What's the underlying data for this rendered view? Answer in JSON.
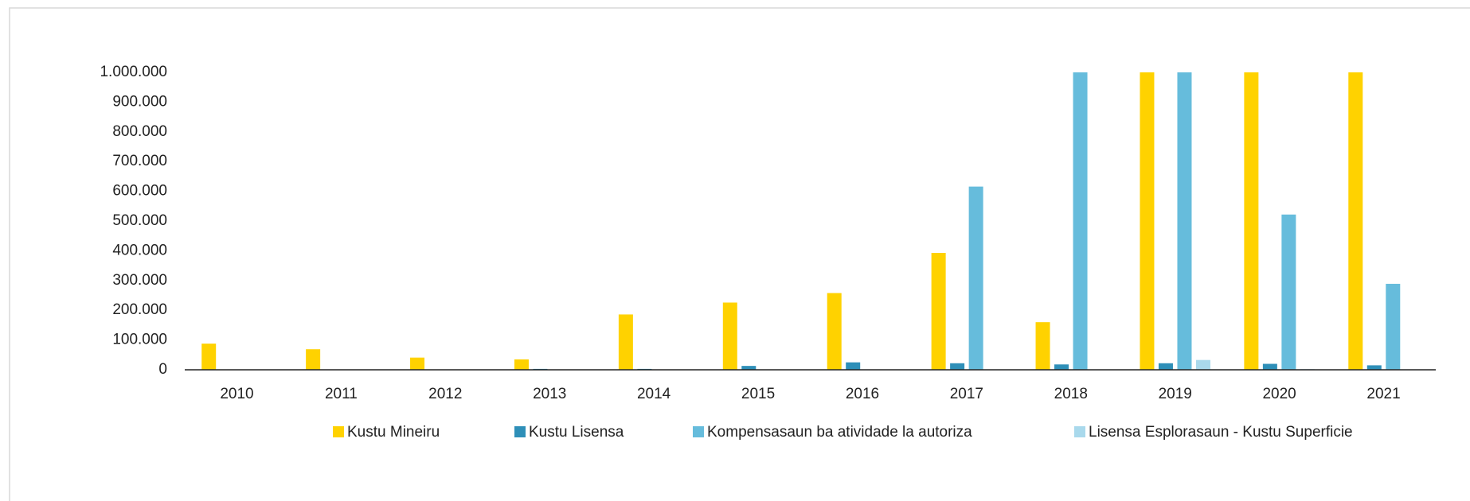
{
  "chart_data": {
    "type": "bar",
    "categories": [
      "2010",
      "2011",
      "2012",
      "2013",
      "2014",
      "2015",
      "2016",
      "2017",
      "2018",
      "2019",
      "2020",
      "2021"
    ],
    "series": [
      {
        "name": "Kustu Mineiru",
        "color": "#ffd200",
        "values": [
          88000,
          69000,
          41000,
          35000,
          186000,
          226000,
          258000,
          393000,
          160000,
          1000000,
          1000000,
          1000000
        ]
      },
      {
        "name": "Kustu Lisensa",
        "color": "#2e8fb8",
        "values": [
          0,
          0,
          0,
          3000,
          3000,
          13000,
          25000,
          22000,
          18000,
          22000,
          20000,
          15000
        ]
      },
      {
        "name": "Kompensasaun ba atividade la autoriza",
        "color": "#66bcdc",
        "values": [
          0,
          0,
          0,
          0,
          0,
          0,
          0,
          616000,
          1000000,
          1000000,
          522000,
          289000
        ]
      },
      {
        "name": "Lisensa Esplorasaun - Kustu Superficie",
        "color": "#a9d9ec",
        "values": [
          0,
          0,
          0,
          0,
          0,
          0,
          0,
          0,
          0,
          33000,
          2000,
          0
        ]
      }
    ],
    "ylim": [
      0,
      1000000
    ],
    "yticks": [
      0,
      {
        "value": 100000,
        "label": "100.000"
      },
      {
        "value": 200000,
        "label": "200.000"
      },
      {
        "value": 300000,
        "label": "300.000"
      },
      {
        "value": 400000,
        "label": "400.000"
      },
      {
        "value": 500000,
        "label": "500.000"
      },
      {
        "value": 600000,
        "label": "600.000"
      },
      {
        "value": 700000,
        "label": "700.000"
      },
      {
        "value": 800000,
        "label": "800.000"
      },
      {
        "value": 900000,
        "label": "900.000"
      },
      {
        "value": 1000000,
        "label": "1.000.000"
      }
    ],
    "grid": false,
    "legend": "bottom"
  }
}
